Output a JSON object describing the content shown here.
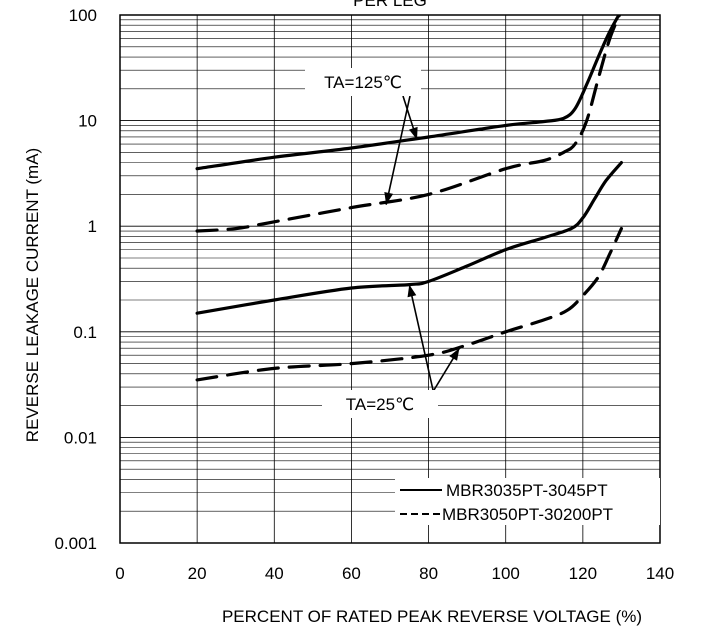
{
  "chart_data": {
    "type": "line",
    "title": "PER LEG",
    "xlabel": "PERCENT OF RATED PEAK REVERSE VOLTAGE (%)",
    "ylabel": "REVERSE LEAKAGE CURRENT (mA)",
    "xlim": [
      0,
      140
    ],
    "ylim": [
      0.001,
      100
    ],
    "yscale": "log",
    "grid": true,
    "x_ticks": [
      "0",
      "20",
      "40",
      "60",
      "80",
      "100",
      "120",
      "140"
    ],
    "y_ticks": [
      "0.001",
      "0.01",
      "0.1",
      "1",
      "10",
      "100"
    ],
    "legend": {
      "placement": "bottom-right",
      "entries": [
        {
          "label": "MBR3035PT-3045PT",
          "style": "solid"
        },
        {
          "label": "MBR3050PT-30200PT",
          "style": "dashed"
        }
      ]
    },
    "annotations": [
      {
        "text": "TA=125℃",
        "pointers": [
          [
            77,
            6.6
          ],
          [
            69,
            1.6
          ]
        ]
      },
      {
        "text": "TA=25℃",
        "pointers": [
          [
            75,
            0.28
          ],
          [
            88,
            0.07
          ]
        ]
      }
    ],
    "series": [
      {
        "style": "solid",
        "x": [
          20,
          40,
          60,
          80,
          100,
          110,
          115,
          118,
          121,
          124,
          127,
          130
        ],
        "y": [
          3.5,
          4.5,
          5.5,
          7.0,
          9.0,
          9.8,
          10.5,
          13,
          22,
          40,
          70,
          110
        ]
      },
      {
        "style": "dashed",
        "x": [
          20,
          30,
          40,
          60,
          80,
          100,
          110,
          115,
          118,
          121,
          124,
          127,
          130
        ],
        "y": [
          0.9,
          0.95,
          1.1,
          1.5,
          2.0,
          3.5,
          4.2,
          5.0,
          6.0,
          10,
          25,
          60,
          110
        ]
      },
      {
        "style": "solid",
        "x": [
          20,
          40,
          60,
          75,
          80,
          90,
          100,
          110,
          117,
          120,
          123,
          126,
          130
        ],
        "y": [
          0.15,
          0.2,
          0.26,
          0.28,
          0.3,
          0.42,
          0.6,
          0.78,
          0.95,
          1.2,
          1.8,
          2.7,
          4.0
        ]
      },
      {
        "style": "dashed",
        "x": [
          20,
          40,
          60,
          80,
          90,
          100,
          110,
          116,
          120,
          124,
          127,
          130
        ],
        "y": [
          0.035,
          0.045,
          0.05,
          0.06,
          0.075,
          0.1,
          0.13,
          0.16,
          0.22,
          0.33,
          0.55,
          0.95
        ]
      }
    ]
  }
}
